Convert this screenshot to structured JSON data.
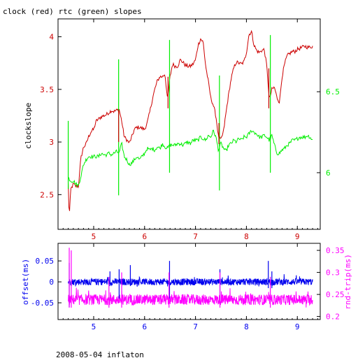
{
  "title": "clock (red) rtc (green) slopes",
  "footer": "2008-05-04 inflaton",
  "colors": {
    "clock": "#cc0000",
    "rtc": "#00ee00",
    "offset": "#0000ee",
    "rndtrip": "#ff00ff",
    "axis": "#000000"
  },
  "chart_data": [
    {
      "type": "line",
      "title": "clock (red) rtc (green) slopes",
      "xlim": [
        4.3,
        9.45
      ],
      "xticks": [
        "5",
        "6",
        "7",
        "8",
        "9"
      ],
      "x_tick_values": [
        5,
        6,
        7,
        8,
        9
      ],
      "left_axis": {
        "label": "clockslope",
        "ylim": [
          2.17,
          4.17
        ],
        "ticks": [
          "2.5",
          "3",
          "3.5",
          "4"
        ],
        "tick_values": [
          2.5,
          3,
          3.5,
          4
        ],
        "color": "#cc0000"
      },
      "right_axis": {
        "label": "",
        "ylim": [
          5.65,
          6.95
        ],
        "ticks": [
          "6",
          "6.5"
        ],
        "tick_values": [
          6,
          6.5
        ],
        "color": "#00ee00"
      },
      "series": [
        {
          "name": "clock",
          "axis": "left",
          "x": [
            4.5,
            4.52,
            4.55,
            4.6,
            4.65,
            4.7,
            4.75,
            4.8,
            4.85,
            4.9,
            4.95,
            5.0,
            5.05,
            5.1,
            5.15,
            5.2,
            5.25,
            5.3,
            5.35,
            5.4,
            5.45,
            5.5,
            5.55,
            5.6,
            5.65,
            5.7,
            5.75,
            5.8,
            5.85,
            5.9,
            5.95,
            6.0,
            6.05,
            6.1,
            6.15,
            6.2,
            6.25,
            6.3,
            6.35,
            6.4,
            6.45,
            6.5,
            6.55,
            6.6,
            6.65,
            6.7,
            6.75,
            6.8,
            6.85,
            6.9,
            6.95,
            7.0,
            7.05,
            7.1,
            7.15,
            7.2,
            7.25,
            7.3,
            7.35,
            7.4,
            7.45,
            7.5,
            7.55,
            7.6,
            7.65,
            7.7,
            7.75,
            7.8,
            7.85,
            7.9,
            7.95,
            8.0,
            8.05,
            8.1,
            8.15,
            8.2,
            8.25,
            8.3,
            8.35,
            8.4,
            8.45,
            8.5,
            8.55,
            8.6,
            8.65,
            8.7,
            8.75,
            8.8,
            8.85,
            8.9,
            8.95,
            9.0,
            9.05,
            9.1,
            9.15,
            9.2,
            9.25,
            9.3
          ],
          "y": [
            2.6,
            2.28,
            2.55,
            2.6,
            2.58,
            2.58,
            2.85,
            2.95,
            2.98,
            3.05,
            3.1,
            3.12,
            3.2,
            3.22,
            3.24,
            3.25,
            3.26,
            3.28,
            3.3,
            3.29,
            3.3,
            3.31,
            3.2,
            3.05,
            3.02,
            2.99,
            3.05,
            3.12,
            3.14,
            3.14,
            3.13,
            3.12,
            3.18,
            3.28,
            3.4,
            3.5,
            3.58,
            3.62,
            3.62,
            3.65,
            3.4,
            3.62,
            3.74,
            3.72,
            3.72,
            3.78,
            3.76,
            3.73,
            3.72,
            3.72,
            3.74,
            3.78,
            3.92,
            3.98,
            3.95,
            3.72,
            3.58,
            3.42,
            3.35,
            3.25,
            3.05,
            3.02,
            3.1,
            3.28,
            3.45,
            3.6,
            3.7,
            3.76,
            3.75,
            3.74,
            3.76,
            3.85,
            4.02,
            4.05,
            3.92,
            3.87,
            3.85,
            3.87,
            3.88,
            3.72,
            3.4,
            3.5,
            3.52,
            3.42,
            3.38,
            3.62,
            3.74,
            3.82,
            3.84,
            3.86,
            3.86,
            3.88,
            3.89,
            3.9,
            3.91,
            3.9,
            3.9,
            3.91
          ]
        },
        {
          "name": "rtc",
          "axis": "right",
          "x": [
            4.5,
            4.55,
            4.6,
            4.65,
            4.7,
            4.75,
            4.8,
            4.85,
            4.9,
            4.95,
            5.0,
            5.05,
            5.1,
            5.15,
            5.2,
            5.25,
            5.3,
            5.35,
            5.4,
            5.45,
            5.5,
            5.55,
            5.6,
            5.65,
            5.7,
            5.75,
            5.8,
            5.85,
            5.9,
            5.95,
            6.0,
            6.05,
            6.1,
            6.15,
            6.2,
            6.25,
            6.3,
            6.35,
            6.4,
            6.45,
            6.5,
            6.55,
            6.6,
            6.65,
            6.7,
            6.75,
            6.8,
            6.85,
            6.9,
            6.95,
            7.0,
            7.05,
            7.1,
            7.15,
            7.2,
            7.25,
            7.3,
            7.35,
            7.4,
            7.45,
            7.5,
            7.55,
            7.6,
            7.65,
            7.7,
            7.75,
            7.8,
            7.85,
            7.9,
            7.95,
            8.0,
            8.05,
            8.1,
            8.15,
            8.2,
            8.25,
            8.3,
            8.35,
            8.4,
            8.45,
            8.5,
            8.55,
            8.6,
            8.65,
            8.7,
            8.75,
            8.8,
            8.85,
            8.9,
            8.95,
            9.0,
            9.05,
            9.1,
            9.15,
            9.2,
            9.25,
            9.3
          ],
          "y": [
            5.97,
            5.95,
            5.95,
            5.93,
            5.92,
            5.98,
            6.05,
            6.08,
            6.1,
            6.1,
            6.1,
            6.1,
            6.1,
            6.12,
            6.11,
            6.11,
            6.12,
            6.11,
            6.12,
            6.13,
            6.12,
            6.18,
            6.1,
            6.08,
            6.05,
            6.06,
            6.08,
            6.1,
            6.08,
            6.1,
            6.12,
            6.15,
            6.14,
            6.15,
            6.14,
            6.16,
            6.15,
            6.18,
            6.16,
            6.15,
            6.17,
            6.17,
            6.17,
            6.18,
            6.18,
            6.17,
            6.18,
            6.19,
            6.18,
            6.2,
            6.2,
            6.2,
            6.22,
            6.21,
            6.2,
            6.23,
            6.22,
            6.26,
            6.22,
            6.14,
            6.18,
            6.15,
            6.13,
            6.17,
            6.18,
            6.2,
            6.19,
            6.21,
            6.2,
            6.22,
            6.22,
            6.24,
            6.26,
            6.25,
            6.24,
            6.22,
            6.22,
            6.23,
            6.22,
            6.2,
            6.23,
            6.17,
            6.12,
            6.12,
            6.14,
            6.15,
            6.17,
            6.18,
            6.2,
            6.2,
            6.21,
            6.22,
            6.22,
            6.22,
            6.23,
            6.22,
            6.2
          ]
        }
      ],
      "spikes": [
        {
          "series": "rtc",
          "x": 4.5,
          "range": [
            5.9,
            6.32
          ]
        },
        {
          "series": "rtc",
          "x": 5.49,
          "range": [
            5.86,
            6.7
          ]
        },
        {
          "series": "rtc",
          "x": 6.49,
          "range": [
            6.0,
            6.82
          ]
        },
        {
          "series": "rtc",
          "x": 7.47,
          "range": [
            5.89,
            6.6
          ]
        },
        {
          "series": "rtc",
          "x": 8.47,
          "range": [
            6.0,
            6.85
          ]
        },
        {
          "series": "clock",
          "x": 5.49,
          "range": [
            3.0,
            3.3
          ]
        },
        {
          "series": "clock",
          "x": 6.46,
          "range": [
            3.32,
            3.62
          ]
        },
        {
          "series": "clock",
          "x": 7.46,
          "range": [
            2.98,
            3.18
          ]
        },
        {
          "series": "clock",
          "x": 8.44,
          "range": [
            3.32,
            3.7
          ]
        }
      ]
    },
    {
      "type": "line",
      "xlim": [
        4.3,
        9.45
      ],
      "xticks": [
        "5",
        "6",
        "7",
        "8",
        "9"
      ],
      "x_tick_values": [
        5,
        6,
        7,
        8,
        9
      ],
      "left_axis": {
        "label": "offset(ms)",
        "ylim": [
          -0.09,
          0.092
        ],
        "ticks": [
          "-0.05",
          "0",
          "0.05"
        ],
        "tick_values": [
          -0.05,
          0,
          0.05
        ],
        "color": "#0000ee"
      },
      "right_axis": {
        "label": "rnd-trip(ms)",
        "ylim": [
          0.193,
          0.366
        ],
        "ticks": [
          "0.2",
          "0.25",
          "0.3",
          "0.35"
        ],
        "tick_values": [
          0.2,
          0.25,
          0.3,
          0.35
        ],
        "color": "#ff00ff"
      },
      "series": [
        {
          "name": "offset",
          "axis": "left",
          "xrange": [
            4.5,
            9.3
          ],
          "mean": 0.0,
          "noise": 0.008
        },
        {
          "name": "rnd-trip",
          "axis": "right",
          "xrange": [
            4.5,
            9.3
          ],
          "mean": 0.238,
          "noise": 0.012
        }
      ],
      "spikes": [
        {
          "series": "offset",
          "x": 4.52,
          "range": [
            -0.06,
            0.045
          ]
        },
        {
          "series": "offset",
          "x": 5.32,
          "range": [
            -0.01,
            0.025
          ]
        },
        {
          "series": "offset",
          "x": 5.5,
          "range": [
            -0.04,
            0.03
          ]
        },
        {
          "series": "offset",
          "x": 5.72,
          "range": [
            -0.01,
            0.04
          ]
        },
        {
          "series": "offset",
          "x": 6.49,
          "range": [
            -0.04,
            0.05
          ]
        },
        {
          "series": "offset",
          "x": 7.48,
          "range": [
            -0.05,
            0.03
          ]
        },
        {
          "series": "offset",
          "x": 8.43,
          "range": [
            -0.015,
            0.05
          ]
        },
        {
          "series": "offset",
          "x": 8.5,
          "range": [
            -0.015,
            0.025
          ]
        },
        {
          "series": "rnd-trip",
          "x": 4.52,
          "range": [
            0.22,
            0.356
          ]
        },
        {
          "series": "rnd-trip",
          "x": 4.56,
          "range": [
            0.22,
            0.35
          ]
        },
        {
          "series": "rnd-trip",
          "x": 5.3,
          "range": [
            0.22,
            0.29
          ]
        },
        {
          "series": "rnd-trip",
          "x": 5.55,
          "range": [
            0.22,
            0.3
          ]
        },
        {
          "series": "rnd-trip",
          "x": 6.48,
          "range": [
            0.22,
            0.3
          ]
        },
        {
          "series": "rnd-trip",
          "x": 7.48,
          "range": [
            0.22,
            0.3
          ]
        },
        {
          "series": "rnd-trip",
          "x": 8.47,
          "range": [
            0.22,
            0.29
          ]
        }
      ]
    }
  ]
}
